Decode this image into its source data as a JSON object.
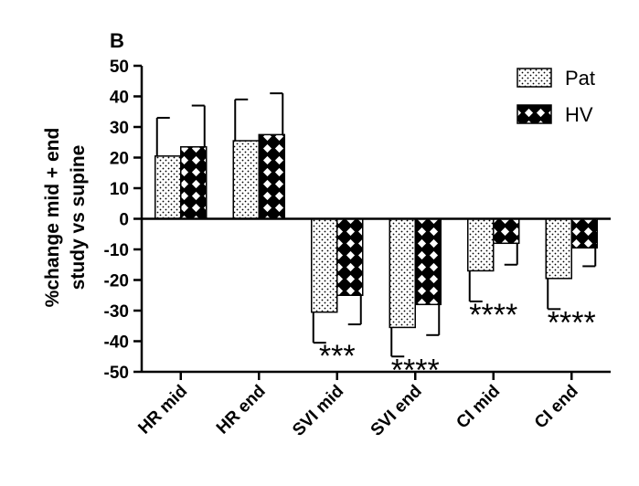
{
  "chart_data": {
    "type": "bar",
    "panel_label": "B",
    "ylabel_lines": [
      "%change mid + end",
      "study vs supine"
    ],
    "xlabel": "",
    "ylim": [
      -50,
      50
    ],
    "yticks": [
      -50,
      -40,
      -30,
      -20,
      -10,
      0,
      10,
      20,
      30,
      40,
      50
    ],
    "categories": [
      "HR mid",
      "HR end",
      "SVI mid",
      "SVI end",
      "CI mid",
      "CI end"
    ],
    "series": [
      {
        "name": "Pat",
        "pattern": "dotted",
        "values": [
          20.5,
          25.5,
          -30.5,
          -35.5,
          -17,
          -19.5
        ],
        "errors": [
          12.5,
          13.5,
          10,
          9.5,
          10,
          10
        ]
      },
      {
        "name": "HV",
        "pattern": "crosshatch",
        "values": [
          23.5,
          27.5,
          -25,
          -28,
          -8,
          -9.5
        ],
        "errors": [
          13.5,
          13.5,
          9.5,
          10,
          7,
          6
        ]
      }
    ],
    "annotations": [
      {
        "category": "SVI mid",
        "text": "***"
      },
      {
        "category": "SVI end",
        "text": "****"
      },
      {
        "category": "CI mid",
        "text": "****"
      },
      {
        "category": "CI end",
        "text": "****"
      }
    ],
    "legend_position": "top-right",
    "grid": false
  }
}
